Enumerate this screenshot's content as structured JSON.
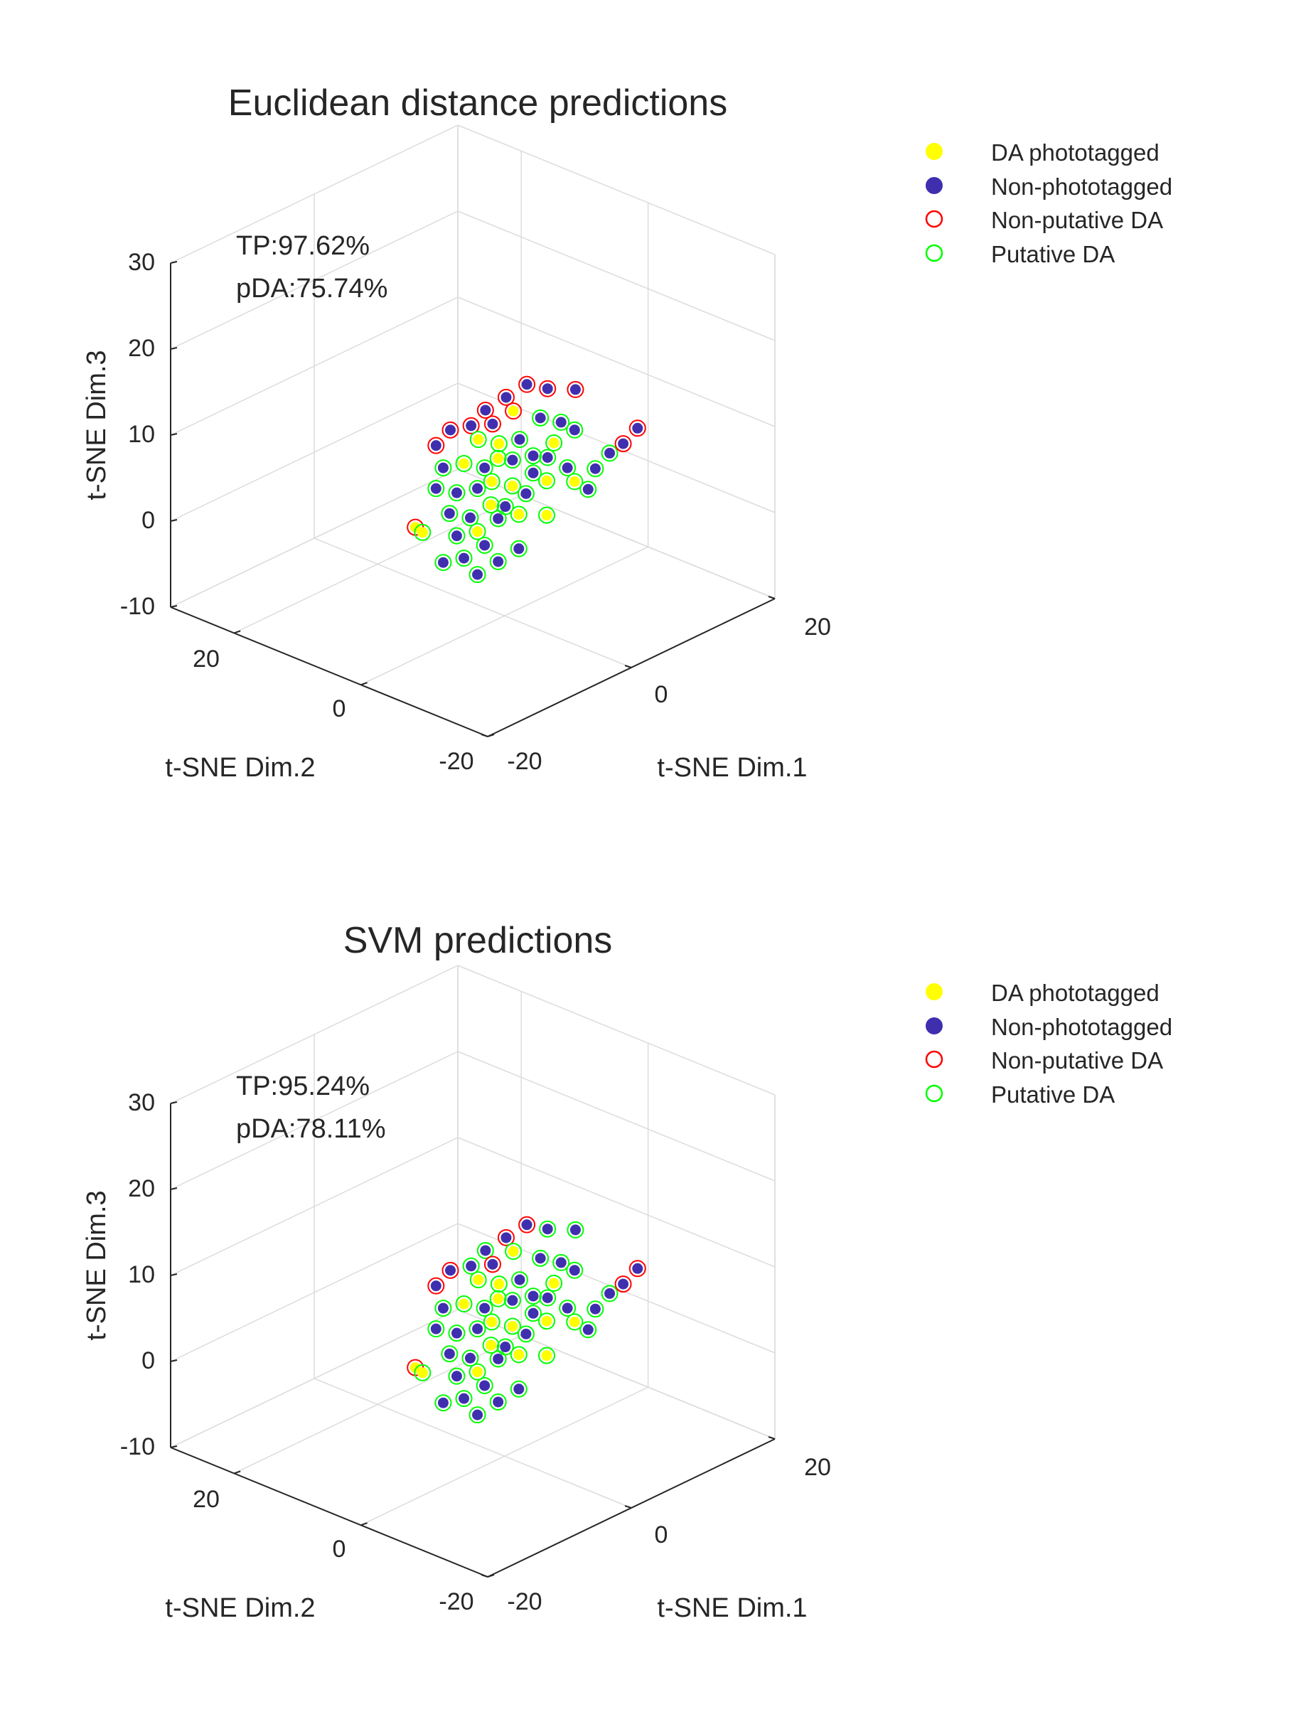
{
  "chart_data": [
    {
      "type": "scatter3d",
      "title": "Euclidean distance predictions",
      "xlabel": "t-SNE Dim.1",
      "ylabel": "t-SNE Dim.2",
      "zlabel": "t-SNE Dim.3",
      "x_ticks": [
        "-20",
        "0",
        "20"
      ],
      "y_ticks": [
        "-20",
        "0",
        "20"
      ],
      "z_ticks": [
        "-10",
        "0",
        "10",
        "20",
        "30"
      ],
      "xlim": [
        -20,
        20
      ],
      "ylim": [
        -20,
        30
      ],
      "zlim": [
        -10,
        30
      ],
      "grid": true,
      "legend_position": "top-right",
      "legend": [
        {
          "label": "DA phototagged",
          "marker": "filled-circle",
          "color": "#FFFF00"
        },
        {
          "label": "Non-phototagged",
          "marker": "filled-circle",
          "color": "#3F2FAF"
        },
        {
          "label": "Non-putative DA",
          "marker": "open-circle",
          "color": "#FF0000"
        },
        {
          "label": "Putative DA",
          "marker": "open-circle",
          "color": "#00FF00"
        }
      ],
      "annotations": [
        "TP:97.62%",
        "pDA:75.74%"
      ],
      "points": [
        {
          "x": 2,
          "y": 2,
          "z": 14,
          "fill": "np",
          "ring": "non"
        },
        {
          "x": 4,
          "y": 1,
          "z": 15,
          "fill": "np",
          "ring": "non"
        },
        {
          "x": 6,
          "y": 0,
          "z": 14,
          "fill": "np",
          "ring": "non"
        },
        {
          "x": 9,
          "y": -1,
          "z": 13,
          "fill": "np",
          "ring": "non"
        },
        {
          "x": -6,
          "y": 4,
          "z": 11,
          "fill": "np",
          "ring": "non"
        },
        {
          "x": -4,
          "y": 4,
          "z": 12,
          "fill": "np",
          "ring": "non"
        },
        {
          "x": -2,
          "y": 3,
          "z": 12,
          "fill": "np",
          "ring": "non"
        },
        {
          "x": 0,
          "y": 3,
          "z": 13,
          "fill": "np",
          "ring": "non"
        },
        {
          "x": 1,
          "y": 3,
          "z": 11,
          "fill": "np",
          "ring": "non"
        },
        {
          "x": 3,
          "y": 2,
          "z": 12,
          "fill": "da",
          "ring": "non"
        },
        {
          "x": -1,
          "y": 3,
          "z": 10,
          "fill": "da",
          "ring": "put"
        },
        {
          "x": 1,
          "y": 2,
          "z": 9,
          "fill": "da",
          "ring": "put"
        },
        {
          "x": 3,
          "y": 1,
          "z": 9,
          "fill": "np",
          "ring": "put"
        },
        {
          "x": 5,
          "y": 0,
          "z": 11,
          "fill": "np",
          "ring": "put"
        },
        {
          "x": 7,
          "y": -1,
          "z": 10,
          "fill": "np",
          "ring": "put"
        },
        {
          "x": 8,
          "y": -2,
          "z": 9,
          "fill": "np",
          "ring": "put"
        },
        {
          "x": -5,
          "y": 4,
          "z": 8,
          "fill": "np",
          "ring": "put"
        },
        {
          "x": -3,
          "y": 3,
          "z": 8,
          "fill": "da",
          "ring": "put"
        },
        {
          "x": -1,
          "y": 2,
          "z": 7,
          "fill": "np",
          "ring": "put"
        },
        {
          "x": 0,
          "y": 1,
          "z": 8,
          "fill": "da",
          "ring": "put"
        },
        {
          "x": 2,
          "y": 1,
          "z": 7,
          "fill": "np",
          "ring": "put"
        },
        {
          "x": 4,
          "y": 0,
          "z": 7,
          "fill": "np",
          "ring": "put"
        },
        {
          "x": 6,
          "y": -1,
          "z": 8,
          "fill": "da",
          "ring": "put"
        },
        {
          "x": -6,
          "y": 4,
          "z": 6,
          "fill": "np",
          "ring": "put"
        },
        {
          "x": -4,
          "y": 3,
          "z": 5,
          "fill": "np",
          "ring": "put"
        },
        {
          "x": -2,
          "y": 2,
          "z": 5,
          "fill": "np",
          "ring": "put"
        },
        {
          "x": 0,
          "y": 2,
          "z": 5,
          "fill": "da",
          "ring": "put"
        },
        {
          "x": 2,
          "y": 1,
          "z": 4,
          "fill": "da",
          "ring": "put"
        },
        {
          "x": 4,
          "y": 0,
          "z": 5,
          "fill": "np",
          "ring": "put"
        },
        {
          "x": 6,
          "y": 0,
          "z": 6,
          "fill": "np",
          "ring": "put"
        },
        {
          "x": -5,
          "y": 3,
          "z": 3,
          "fill": "np",
          "ring": "put"
        },
        {
          "x": -3,
          "y": 2,
          "z": 2,
          "fill": "np",
          "ring": "put"
        },
        {
          "x": -1,
          "y": 1,
          "z": 3,
          "fill": "da",
          "ring": "put"
        },
        {
          "x": 1,
          "y": 1,
          "z": 2,
          "fill": "np",
          "ring": "put"
        },
        {
          "x": 3,
          "y": 0,
          "z": 3,
          "fill": "np",
          "ring": "put"
        },
        {
          "x": 5,
          "y": -1,
          "z": 4,
          "fill": "da",
          "ring": "put"
        },
        {
          "x": 7,
          "y": -2,
          "z": 5,
          "fill": "np",
          "ring": "put"
        },
        {
          "x": -8,
          "y": 5,
          "z": 2,
          "fill": "da",
          "ring": "non"
        },
        {
          "x": -7,
          "y": 5,
          "z": 1,
          "fill": "da",
          "ring": "put"
        },
        {
          "x": -4,
          "y": 3,
          "z": 0,
          "fill": "np",
          "ring": "put"
        },
        {
          "x": -2,
          "y": 2,
          "z": 0,
          "fill": "da",
          "ring": "put"
        },
        {
          "x": 0,
          "y": 1,
          "z": 1,
          "fill": "np",
          "ring": "put"
        },
        {
          "x": 2,
          "y": 0,
          "z": 1,
          "fill": "da",
          "ring": "put"
        },
        {
          "x": 8,
          "y": -2,
          "z": 3,
          "fill": "da",
          "ring": "put"
        },
        {
          "x": 10,
          "y": -3,
          "z": 4,
          "fill": "np",
          "ring": "put"
        },
        {
          "x": 12,
          "y": -3,
          "z": 5,
          "fill": "np",
          "ring": "put"
        },
        {
          "x": 13,
          "y": -4,
          "z": 6,
          "fill": "np",
          "ring": "non"
        },
        {
          "x": 15,
          "y": -4,
          "z": 7,
          "fill": "np",
          "ring": "non"
        },
        {
          "x": 9,
          "y": -3,
          "z": 2,
          "fill": "np",
          "ring": "put"
        },
        {
          "x": 5,
          "y": -1,
          "z": 0,
          "fill": "da",
          "ring": "put"
        },
        {
          "x": -5,
          "y": 4,
          "z": -3,
          "fill": "np",
          "ring": "put"
        },
        {
          "x": -3,
          "y": 3,
          "z": -3,
          "fill": "np",
          "ring": "put"
        },
        {
          "x": -1,
          "y": 2,
          "z": -2,
          "fill": "np",
          "ring": "put"
        },
        {
          "x": 0,
          "y": 1,
          "z": -4,
          "fill": "np",
          "ring": "put"
        },
        {
          "x": 2,
          "y": 0,
          "z": -3,
          "fill": "np",
          "ring": "put"
        },
        {
          "x": -2,
          "y": 2,
          "z": -5,
          "fill": "np",
          "ring": "put"
        }
      ]
    },
    {
      "type": "scatter3d",
      "title": "SVM predictions",
      "xlabel": "t-SNE Dim.1",
      "ylabel": "t-SNE Dim.2",
      "zlabel": "t-SNE Dim.3",
      "x_ticks": [
        "-20",
        "0",
        "20"
      ],
      "y_ticks": [
        "-20",
        "0",
        "20"
      ],
      "z_ticks": [
        "-10",
        "0",
        "10",
        "20",
        "30"
      ],
      "xlim": [
        -20,
        20
      ],
      "ylim": [
        -20,
        30
      ],
      "zlim": [
        -10,
        30
      ],
      "grid": true,
      "legend_position": "top-right",
      "legend": [
        {
          "label": "DA phototagged",
          "marker": "filled-circle",
          "color": "#FFFF00"
        },
        {
          "label": "Non-phototagged",
          "marker": "filled-circle",
          "color": "#3F2FAF"
        },
        {
          "label": "Non-putative DA",
          "marker": "open-circle",
          "color": "#FF0000"
        },
        {
          "label": "Putative DA",
          "marker": "open-circle",
          "color": "#00FF00"
        }
      ],
      "annotations": [
        "TP:95.24%",
        "pDA:78.11%"
      ],
      "points": [
        {
          "x": 2,
          "y": 2,
          "z": 14,
          "fill": "np",
          "ring": "non"
        },
        {
          "x": 4,
          "y": 1,
          "z": 15,
          "fill": "np",
          "ring": "non"
        },
        {
          "x": 6,
          "y": 0,
          "z": 14,
          "fill": "np",
          "ring": "put"
        },
        {
          "x": 9,
          "y": -1,
          "z": 13,
          "fill": "np",
          "ring": "put"
        },
        {
          "x": -6,
          "y": 4,
          "z": 11,
          "fill": "np",
          "ring": "non"
        },
        {
          "x": -4,
          "y": 4,
          "z": 12,
          "fill": "np",
          "ring": "non"
        },
        {
          "x": -2,
          "y": 3,
          "z": 12,
          "fill": "np",
          "ring": "put"
        },
        {
          "x": 0,
          "y": 3,
          "z": 13,
          "fill": "np",
          "ring": "put"
        },
        {
          "x": 1,
          "y": 3,
          "z": 11,
          "fill": "np",
          "ring": "non"
        },
        {
          "x": 3,
          "y": 2,
          "z": 12,
          "fill": "da",
          "ring": "put"
        },
        {
          "x": -1,
          "y": 3,
          "z": 10,
          "fill": "da",
          "ring": "put"
        },
        {
          "x": 1,
          "y": 2,
          "z": 9,
          "fill": "da",
          "ring": "put"
        },
        {
          "x": 3,
          "y": 1,
          "z": 9,
          "fill": "np",
          "ring": "put"
        },
        {
          "x": 5,
          "y": 0,
          "z": 11,
          "fill": "np",
          "ring": "put"
        },
        {
          "x": 7,
          "y": -1,
          "z": 10,
          "fill": "np",
          "ring": "put"
        },
        {
          "x": 8,
          "y": -2,
          "z": 9,
          "fill": "np",
          "ring": "put"
        },
        {
          "x": -5,
          "y": 4,
          "z": 8,
          "fill": "np",
          "ring": "put"
        },
        {
          "x": -3,
          "y": 3,
          "z": 8,
          "fill": "da",
          "ring": "put"
        },
        {
          "x": -1,
          "y": 2,
          "z": 7,
          "fill": "np",
          "ring": "put"
        },
        {
          "x": 0,
          "y": 1,
          "z": 8,
          "fill": "da",
          "ring": "put"
        },
        {
          "x": 2,
          "y": 1,
          "z": 7,
          "fill": "np",
          "ring": "put"
        },
        {
          "x": 4,
          "y": 0,
          "z": 7,
          "fill": "np",
          "ring": "put"
        },
        {
          "x": 6,
          "y": -1,
          "z": 8,
          "fill": "da",
          "ring": "put"
        },
        {
          "x": -6,
          "y": 4,
          "z": 6,
          "fill": "np",
          "ring": "put"
        },
        {
          "x": -4,
          "y": 3,
          "z": 5,
          "fill": "np",
          "ring": "put"
        },
        {
          "x": -2,
          "y": 2,
          "z": 5,
          "fill": "np",
          "ring": "put"
        },
        {
          "x": 0,
          "y": 2,
          "z": 5,
          "fill": "da",
          "ring": "put"
        },
        {
          "x": 2,
          "y": 1,
          "z": 4,
          "fill": "da",
          "ring": "put"
        },
        {
          "x": 4,
          "y": 0,
          "z": 5,
          "fill": "np",
          "ring": "put"
        },
        {
          "x": 6,
          "y": 0,
          "z": 6,
          "fill": "np",
          "ring": "put"
        },
        {
          "x": -5,
          "y": 3,
          "z": 3,
          "fill": "np",
          "ring": "put"
        },
        {
          "x": -3,
          "y": 2,
          "z": 2,
          "fill": "np",
          "ring": "put"
        },
        {
          "x": -1,
          "y": 1,
          "z": 3,
          "fill": "da",
          "ring": "put"
        },
        {
          "x": 1,
          "y": 1,
          "z": 2,
          "fill": "np",
          "ring": "put"
        },
        {
          "x": 3,
          "y": 0,
          "z": 3,
          "fill": "np",
          "ring": "put"
        },
        {
          "x": 5,
          "y": -1,
          "z": 4,
          "fill": "da",
          "ring": "put"
        },
        {
          "x": 7,
          "y": -2,
          "z": 5,
          "fill": "np",
          "ring": "put"
        },
        {
          "x": -8,
          "y": 5,
          "z": 2,
          "fill": "da",
          "ring": "non"
        },
        {
          "x": -7,
          "y": 5,
          "z": 1,
          "fill": "da",
          "ring": "put"
        },
        {
          "x": -4,
          "y": 3,
          "z": 0,
          "fill": "np",
          "ring": "put"
        },
        {
          "x": -2,
          "y": 2,
          "z": 0,
          "fill": "da",
          "ring": "put"
        },
        {
          "x": 0,
          "y": 1,
          "z": 1,
          "fill": "np",
          "ring": "put"
        },
        {
          "x": 2,
          "y": 0,
          "z": 1,
          "fill": "da",
          "ring": "put"
        },
        {
          "x": 8,
          "y": -2,
          "z": 3,
          "fill": "da",
          "ring": "put"
        },
        {
          "x": 10,
          "y": -3,
          "z": 4,
          "fill": "np",
          "ring": "put"
        },
        {
          "x": 12,
          "y": -3,
          "z": 5,
          "fill": "np",
          "ring": "put"
        },
        {
          "x": 13,
          "y": -4,
          "z": 6,
          "fill": "np",
          "ring": "non"
        },
        {
          "x": 15,
          "y": -4,
          "z": 7,
          "fill": "np",
          "ring": "non"
        },
        {
          "x": 9,
          "y": -3,
          "z": 2,
          "fill": "np",
          "ring": "put"
        },
        {
          "x": 5,
          "y": -1,
          "z": 0,
          "fill": "da",
          "ring": "put"
        },
        {
          "x": -5,
          "y": 4,
          "z": -3,
          "fill": "np",
          "ring": "put"
        },
        {
          "x": -3,
          "y": 3,
          "z": -3,
          "fill": "np",
          "ring": "put"
        },
        {
          "x": -1,
          "y": 2,
          "z": -2,
          "fill": "np",
          "ring": "put"
        },
        {
          "x": 0,
          "y": 1,
          "z": -4,
          "fill": "np",
          "ring": "put"
        },
        {
          "x": 2,
          "y": 0,
          "z": -3,
          "fill": "np",
          "ring": "put"
        },
        {
          "x": -2,
          "y": 2,
          "z": -5,
          "fill": "np",
          "ring": "put"
        }
      ]
    }
  ]
}
